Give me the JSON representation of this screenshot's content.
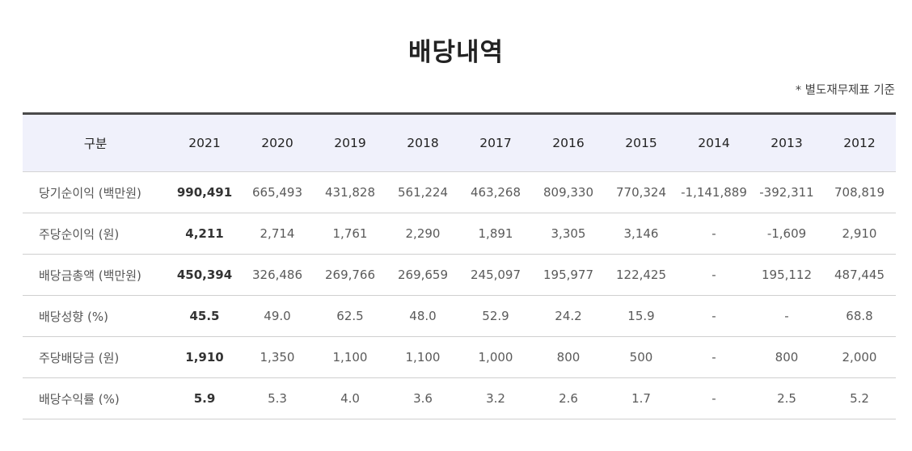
{
  "page": {
    "title": "배당내역",
    "basis_note": "* 별도재무제표 기준"
  },
  "table": {
    "header_label": "구분",
    "years": [
      "2021",
      "2020",
      "2019",
      "2018",
      "2017",
      "2016",
      "2015",
      "2014",
      "2013",
      "2012"
    ],
    "rows": [
      {
        "label": "당기순이익 (백만원)",
        "values": [
          "990,491",
          "665,493",
          "431,828",
          "561,224",
          "463,268",
          "809,330",
          "770,324",
          "-1,141,889",
          "-392,311",
          "708,819"
        ]
      },
      {
        "label": "주당순이익 (원)",
        "values": [
          "4,211",
          "2,714",
          "1,761",
          "2,290",
          "1,891",
          "3,305",
          "3,146",
          "-",
          "-1,609",
          "2,910"
        ]
      },
      {
        "label": "배당금총액 (백만원)",
        "values": [
          "450,394",
          "326,486",
          "269,766",
          "269,659",
          "245,097",
          "195,977",
          "122,425",
          "-",
          "195,112",
          "487,445"
        ]
      },
      {
        "label": "배당성향 (%)",
        "values": [
          "45.5",
          "49.0",
          "62.5",
          "48.0",
          "52.9",
          "24.2",
          "15.9",
          "-",
          "-",
          "68.8"
        ]
      },
      {
        "label": "주당배당금 (원)",
        "values": [
          "1,910",
          "1,350",
          "1,100",
          "1,100",
          "1,000",
          "800",
          "500",
          "-",
          "800",
          "2,000"
        ]
      },
      {
        "label": "배당수익률 (%)",
        "values": [
          "5.9",
          "5.3",
          "4.0",
          "3.6",
          "3.2",
          "2.6",
          "1.7",
          "-",
          "2.5",
          "5.2"
        ]
      }
    ]
  }
}
